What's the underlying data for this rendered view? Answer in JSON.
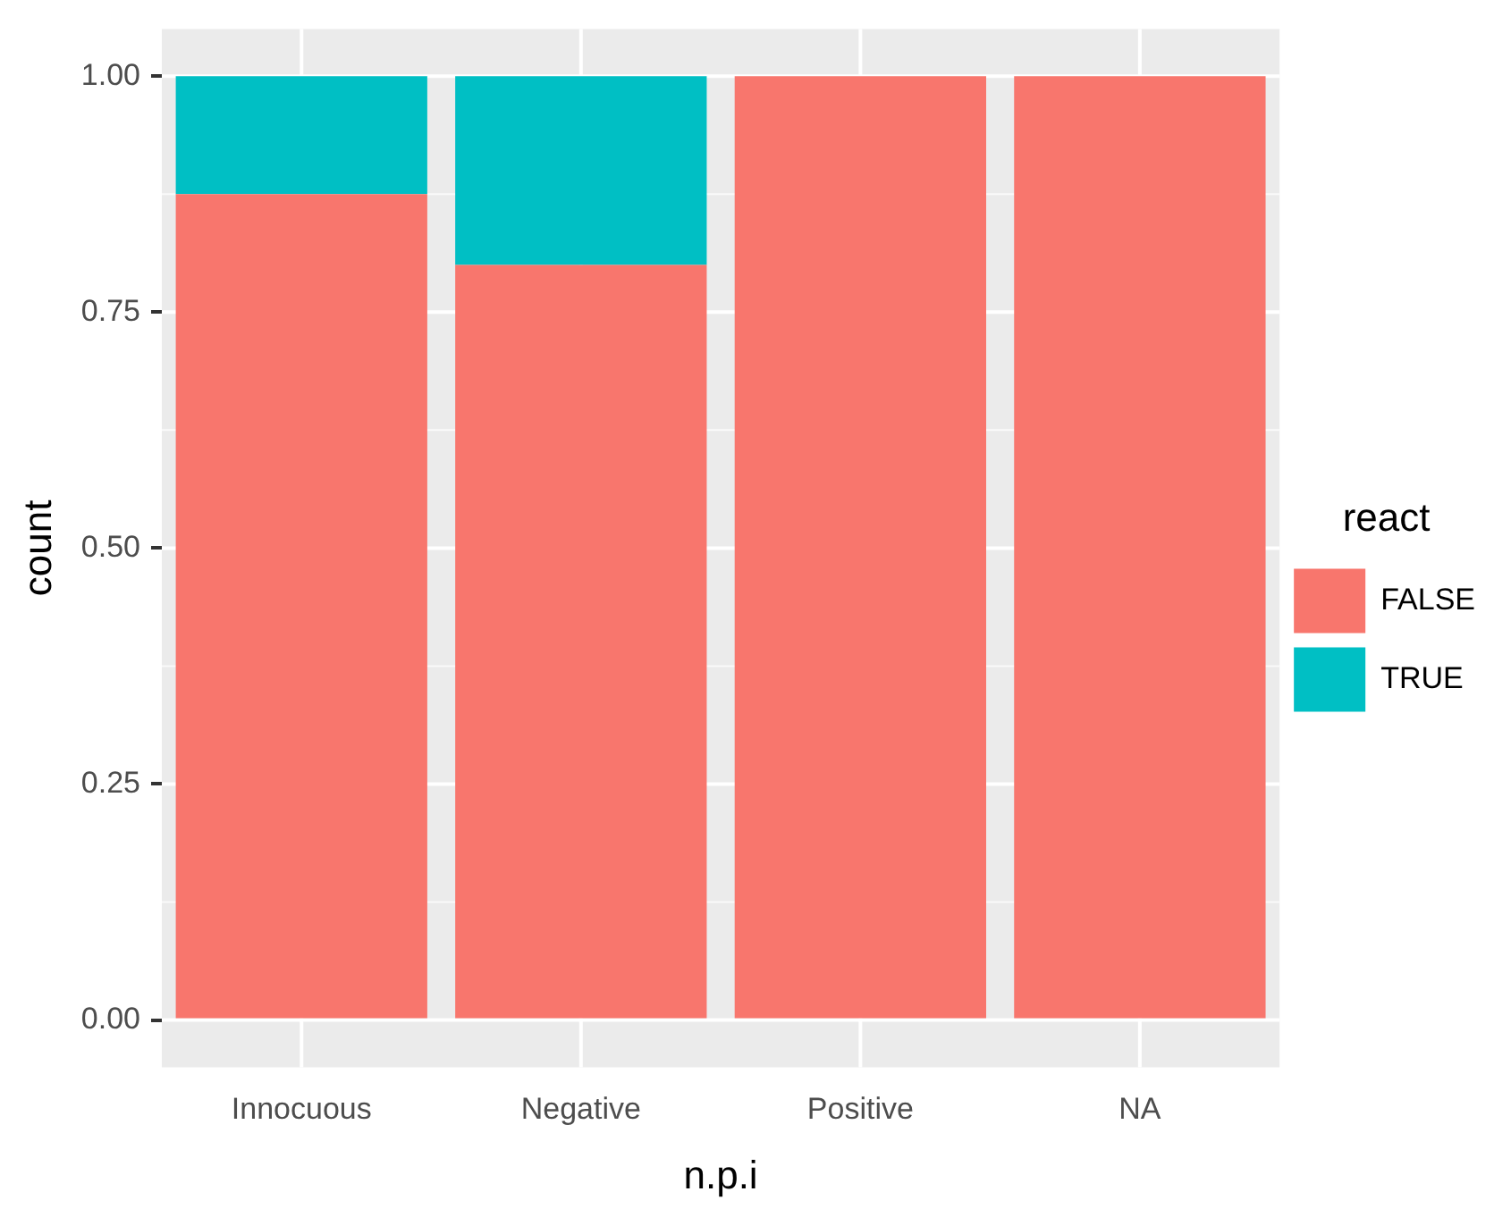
{
  "chart_data": {
    "type": "bar",
    "stacked": true,
    "xlabel": "n.p.i",
    "ylabel": "count",
    "legend_title": "react",
    "categories": [
      "Innocuous",
      "Negative",
      "Positive",
      "NA"
    ],
    "series": [
      {
        "name": "FALSE",
        "color": "#f8766d",
        "values": [
          0.875,
          0.8,
          1,
          1
        ]
      },
      {
        "name": "TRUE",
        "color": "#00bfc4",
        "values": [
          0.125,
          0.2,
          0,
          0
        ]
      }
    ],
    "ylim": [
      -0.05,
      1.05
    ],
    "yticks": [
      {
        "value": 0,
        "label": "0.00"
      },
      {
        "value": 0.25,
        "label": "0.25"
      },
      {
        "value": 0.5,
        "label": "0.50"
      },
      {
        "value": 0.75,
        "label": "0.75"
      },
      {
        "value": 1,
        "label": "1.00"
      }
    ],
    "grid": true,
    "legend": "right"
  }
}
